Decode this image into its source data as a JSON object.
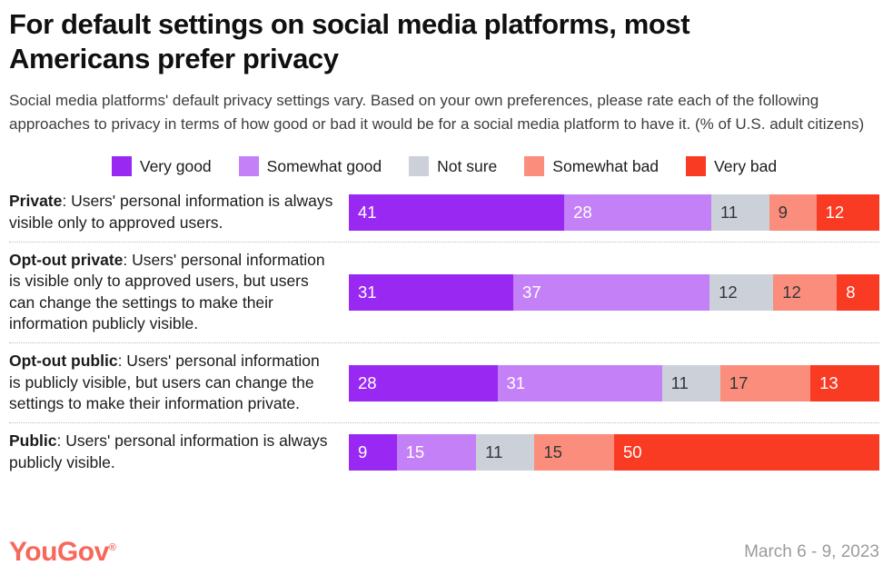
{
  "header": {
    "title": "For default settings on social media platforms, most Americans prefer privacy",
    "subtitle": "Social media platforms' default privacy settings vary. Based on your own preferences, please rate each of the following approaches to privacy in terms of how good or bad it would be for a social media platform to have it. (% of U.S. adult citizens)"
  },
  "legend": [
    {
      "label": "Very good",
      "color": "#9929F2",
      "value_text_color": "#FFFFFF"
    },
    {
      "label": "Somewhat good",
      "color": "#C481F7",
      "value_text_color": "#FFFFFF"
    },
    {
      "label": "Not sure",
      "color": "#CCD0D9",
      "value_text_color": "#33363B"
    },
    {
      "label": "Somewhat bad",
      "color": "#FA8D7C",
      "value_text_color": "#33363B"
    },
    {
      "label": "Very bad",
      "color": "#FA3B24",
      "value_text_color": "#FFFFFF"
    }
  ],
  "rows": [
    {
      "term": "Private",
      "description": ": Users' personal information is always visible only to approved users.",
      "values": [
        41,
        28,
        11,
        9,
        12
      ]
    },
    {
      "term": "Opt-out private",
      "description": ": Users' personal information is visible only to approved users, but users can change the settings to make their information publicly visible.",
      "values": [
        31,
        37,
        12,
        12,
        8
      ]
    },
    {
      "term": "Opt-out public",
      "description": ": Users' personal information is publicly visible, but users can change the settings to make their information private.",
      "values": [
        28,
        31,
        11,
        17,
        13
      ]
    },
    {
      "term": "Public",
      "description": ": Users' personal information is always publicly visible.",
      "values": [
        9,
        15,
        11,
        15,
        50
      ]
    }
  ],
  "chart_data": {
    "type": "bar",
    "stacked": true,
    "orientation": "horizontal",
    "title": "For default settings on social media platforms, most Americans prefer privacy",
    "unit": "% of U.S. adult citizens",
    "categories": [
      "Private",
      "Opt-out private",
      "Opt-out public",
      "Public"
    ],
    "series": [
      {
        "name": "Very good",
        "color": "#9929F2",
        "values": [
          41,
          31,
          28,
          9
        ]
      },
      {
        "name": "Somewhat good",
        "color": "#C481F7",
        "values": [
          28,
          37,
          31,
          15
        ]
      },
      {
        "name": "Not sure",
        "color": "#CCD0D9",
        "values": [
          11,
          12,
          11,
          11
        ]
      },
      {
        "name": "Somewhat bad",
        "color": "#FA8D7C",
        "values": [
          9,
          12,
          17,
          15
        ]
      },
      {
        "name": "Very bad",
        "color": "#FA3B24",
        "values": [
          12,
          8,
          13,
          50
        ]
      }
    ],
    "xlim": [
      0,
      100
    ],
    "legend_position": "top",
    "data_labels": "inside-left",
    "grid": false
  },
  "footer": {
    "logo": "YouGov",
    "registered": "®",
    "date": "March 6 - 9, 2023"
  }
}
